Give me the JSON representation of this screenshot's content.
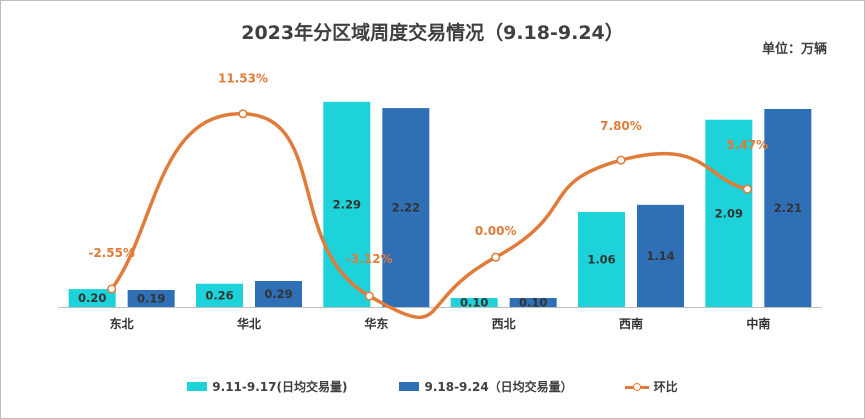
{
  "chart_data": {
    "type": "bar",
    "title": "2023年分区域周度交易情况（9.18-9.24）",
    "unit_label": "单位：万辆",
    "categories": [
      "东北",
      "华北",
      "华东",
      "西北",
      "西南",
      "中南"
    ],
    "series": [
      {
        "name": "9.11-9.17(日均交易量)",
        "type": "bar",
        "color": "#1dd3d9",
        "values": [
          0.2,
          0.26,
          2.29,
          0.1,
          1.06,
          2.09
        ]
      },
      {
        "name": "9.18-9.24（日均交易量）",
        "type": "bar",
        "color": "#2f6fb5",
        "values": [
          0.19,
          0.29,
          2.22,
          0.1,
          1.14,
          2.21
        ]
      }
    ],
    "line_series": {
      "name": "环比",
      "type": "line",
      "color": "#e07b39",
      "values": [
        -2.55,
        11.53,
        -3.12,
        0.0,
        7.8,
        5.47
      ],
      "labels": [
        "-2.55%",
        "11.53%",
        "-3.12%",
        "0.00%",
        "7.80%",
        "5.47%"
      ]
    },
    "bar_ylim": [
      0,
      2.5
    ],
    "line_ylim": [
      -4,
      14
    ],
    "grid": false,
    "legend_position": "bottom"
  }
}
